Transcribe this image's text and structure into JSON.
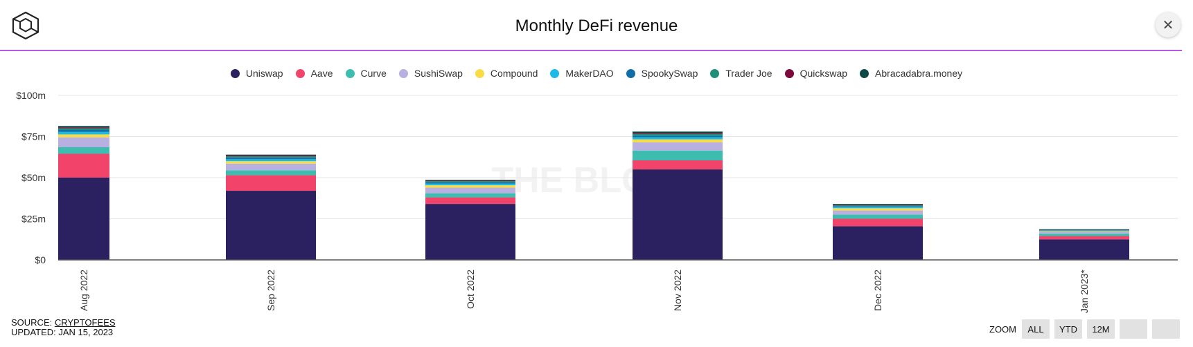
{
  "header": {
    "title": "Monthly DeFi revenue",
    "close_label": "✕"
  },
  "watermark": "THE BLOCK",
  "footer": {
    "source_prefix": "SOURCE: ",
    "source_link": "CRYPTOFEES",
    "updated": "UPDATED: JAN 15, 2023"
  },
  "zoom": {
    "label": "ZOOM",
    "buttons": [
      "ALL",
      "YTD",
      "12M",
      "",
      ""
    ]
  },
  "colors": {
    "accent_rule": "#b55ae0",
    "gridline": "#e6e6e6",
    "axis": "#555555"
  },
  "chart_data": {
    "type": "bar",
    "stacked": true,
    "title": "Monthly DeFi revenue",
    "xlabel": "",
    "ylabel": "",
    "ylim": [
      0,
      100
    ],
    "yticks": [
      0,
      25,
      50,
      75,
      100
    ],
    "ytick_labels": [
      "$0",
      "$25m",
      "$50m",
      "$75m",
      "$100m"
    ],
    "grid": true,
    "legend_position": "top-center",
    "categories": [
      "Aug 2022",
      "Sep 2022",
      "Oct 2022",
      "Nov 2022",
      "Dec 2022",
      "Jan 2023*"
    ],
    "series": [
      {
        "name": "Uniswap",
        "color": "#2b2060",
        "values": [
          50,
          42,
          34,
          55,
          20.5,
          12.5
        ]
      },
      {
        "name": "Aave",
        "color": "#f2436a",
        "values": [
          14.5,
          9.5,
          4,
          5.5,
          4.5,
          2
        ]
      },
      {
        "name": "Curve",
        "color": "#3dbdb0",
        "values": [
          4,
          3,
          2.5,
          6,
          2.5,
          1.5
        ]
      },
      {
        "name": "SushiSwap",
        "color": "#b7b0e0",
        "values": [
          6,
          4,
          3.5,
          5,
          2.5,
          1
        ]
      },
      {
        "name": "Compound",
        "color": "#f7dc45",
        "values": [
          1.8,
          1.5,
          1.4,
          1.8,
          1.4,
          0.4
        ]
      },
      {
        "name": "MakerDAO",
        "color": "#1ab9e8",
        "values": [
          1.5,
          1.2,
          1.0,
          1.3,
          0.9,
          0.4
        ]
      },
      {
        "name": "SpookySwap",
        "color": "#106fa8",
        "values": [
          1.2,
          0.9,
          0.7,
          0.9,
          0.4,
          0.2
        ]
      },
      {
        "name": "Trader Joe",
        "color": "#1f8f7a",
        "values": [
          1.0,
          0.8,
          0.7,
          1.2,
          0.6,
          0.3
        ]
      },
      {
        "name": "Quickswap",
        "color": "#7d0a3d",
        "values": [
          0.6,
          0.5,
          0.4,
          0.6,
          0.3,
          0.2
        ]
      },
      {
        "name": "Abracadabra.money",
        "color": "#0d4a46",
        "values": [
          0.8,
          0.6,
          0.5,
          0.7,
          0.4,
          0.2
        ]
      }
    ]
  }
}
